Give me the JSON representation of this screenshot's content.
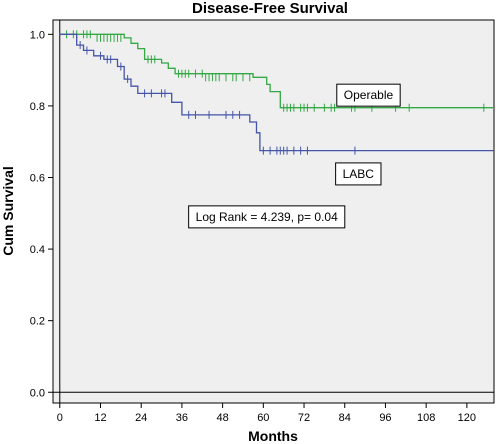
{
  "chart_data": {
    "type": "line",
    "title": "Disease-Free Survival",
    "xlabel": "Months",
    "ylabel": "Cum Survival",
    "xlim": [
      -2,
      128
    ],
    "ylim": [
      -0.03,
      1.04
    ],
    "xticks": [
      0,
      12,
      24,
      36,
      48,
      60,
      72,
      84,
      96,
      108,
      120
    ],
    "yticks": [
      0.0,
      0.2,
      0.4,
      0.6,
      0.8,
      1.0
    ],
    "ytick_labels": [
      "0.0",
      "0.2",
      "0.4",
      "0.6",
      "0.8",
      "1.0"
    ],
    "grid": false,
    "reference_lines": {
      "x": 0,
      "y": 0
    },
    "colors": {
      "background": "#efefef",
      "operable": "#33a844",
      "labc": "#4455aa",
      "axis": "#000000"
    },
    "series": [
      {
        "name": "Operable",
        "color": "#33a844",
        "steps": [
          [
            0,
            1.0
          ],
          [
            19,
            0.99
          ],
          [
            21,
            0.975
          ],
          [
            23,
            0.96
          ],
          [
            25,
            0.93
          ],
          [
            30,
            0.92
          ],
          [
            32,
            0.905
          ],
          [
            34,
            0.89
          ],
          [
            57,
            0.88
          ],
          [
            61,
            0.86
          ],
          [
            62,
            0.84
          ],
          [
            65,
            0.795
          ],
          [
            128,
            0.795
          ]
        ],
        "censored": [
          [
            2,
            1.0
          ],
          [
            4,
            1.0
          ],
          [
            5,
            1.0
          ],
          [
            7,
            1.0
          ],
          [
            8,
            1.0
          ],
          [
            9,
            1.0
          ],
          [
            11,
            0.99
          ],
          [
            12,
            0.99
          ],
          [
            13,
            0.99
          ],
          [
            14,
            0.99
          ],
          [
            15,
            0.99
          ],
          [
            16,
            0.99
          ],
          [
            17,
            0.99
          ],
          [
            18,
            0.99
          ],
          [
            26,
            0.93
          ],
          [
            27,
            0.93
          ],
          [
            28,
            0.93
          ],
          [
            35,
            0.89
          ],
          [
            36,
            0.89
          ],
          [
            37,
            0.89
          ],
          [
            38,
            0.89
          ],
          [
            40,
            0.89
          ],
          [
            42,
            0.89
          ],
          [
            43,
            0.88
          ],
          [
            44,
            0.88
          ],
          [
            45,
            0.88
          ],
          [
            46,
            0.88
          ],
          [
            47,
            0.88
          ],
          [
            49,
            0.88
          ],
          [
            51,
            0.88
          ],
          [
            52,
            0.88
          ],
          [
            54,
            0.88
          ],
          [
            56,
            0.88
          ],
          [
            66,
            0.795
          ],
          [
            67,
            0.795
          ],
          [
            68,
            0.795
          ],
          [
            69,
            0.795
          ],
          [
            71,
            0.795
          ],
          [
            72,
            0.795
          ],
          [
            73,
            0.795
          ],
          [
            75,
            0.795
          ],
          [
            78,
            0.795
          ],
          [
            80,
            0.795
          ],
          [
            81,
            0.795
          ],
          [
            86,
            0.795
          ],
          [
            87,
            0.795
          ],
          [
            92,
            0.795
          ],
          [
            99,
            0.795
          ],
          [
            103,
            0.795
          ],
          [
            125,
            0.795
          ]
        ]
      },
      {
        "name": "LABC",
        "color": "#4455aa",
        "steps": [
          [
            0,
            1.0
          ],
          [
            5,
            0.97
          ],
          [
            7,
            0.955
          ],
          [
            10,
            0.94
          ],
          [
            13,
            0.93
          ],
          [
            17,
            0.91
          ],
          [
            19,
            0.875
          ],
          [
            21,
            0.855
          ],
          [
            23,
            0.835
          ],
          [
            33,
            0.81
          ],
          [
            36,
            0.775
          ],
          [
            56,
            0.755
          ],
          [
            58,
            0.725
          ],
          [
            59,
            0.675
          ],
          [
            128,
            0.675
          ]
        ],
        "censored": [
          [
            6,
            0.97
          ],
          [
            8,
            0.955
          ],
          [
            12,
            0.94
          ],
          [
            14,
            0.93
          ],
          [
            15,
            0.93
          ],
          [
            18,
            0.91
          ],
          [
            20,
            0.875
          ],
          [
            25,
            0.835
          ],
          [
            27,
            0.835
          ],
          [
            30,
            0.835
          ],
          [
            31,
            0.835
          ],
          [
            38,
            0.775
          ],
          [
            40,
            0.775
          ],
          [
            44,
            0.775
          ],
          [
            49,
            0.775
          ],
          [
            51,
            0.775
          ],
          [
            53,
            0.775
          ],
          [
            60,
            0.675
          ],
          [
            62,
            0.675
          ],
          [
            64,
            0.675
          ],
          [
            65,
            0.675
          ],
          [
            66,
            0.675
          ],
          [
            67,
            0.675
          ],
          [
            69,
            0.675
          ],
          [
            71,
            0.675
          ],
          [
            73,
            0.675
          ],
          [
            87,
            0.675
          ]
        ]
      }
    ],
    "annotations": [
      {
        "text": "Operable",
        "x": 91,
        "y": 0.83
      },
      {
        "text": "LABC",
        "x": 88,
        "y": 0.61
      },
      {
        "text": "Log Rank = 4.239, p= 0.04",
        "x": 61,
        "y": 0.49,
        "boxed": true
      }
    ]
  }
}
